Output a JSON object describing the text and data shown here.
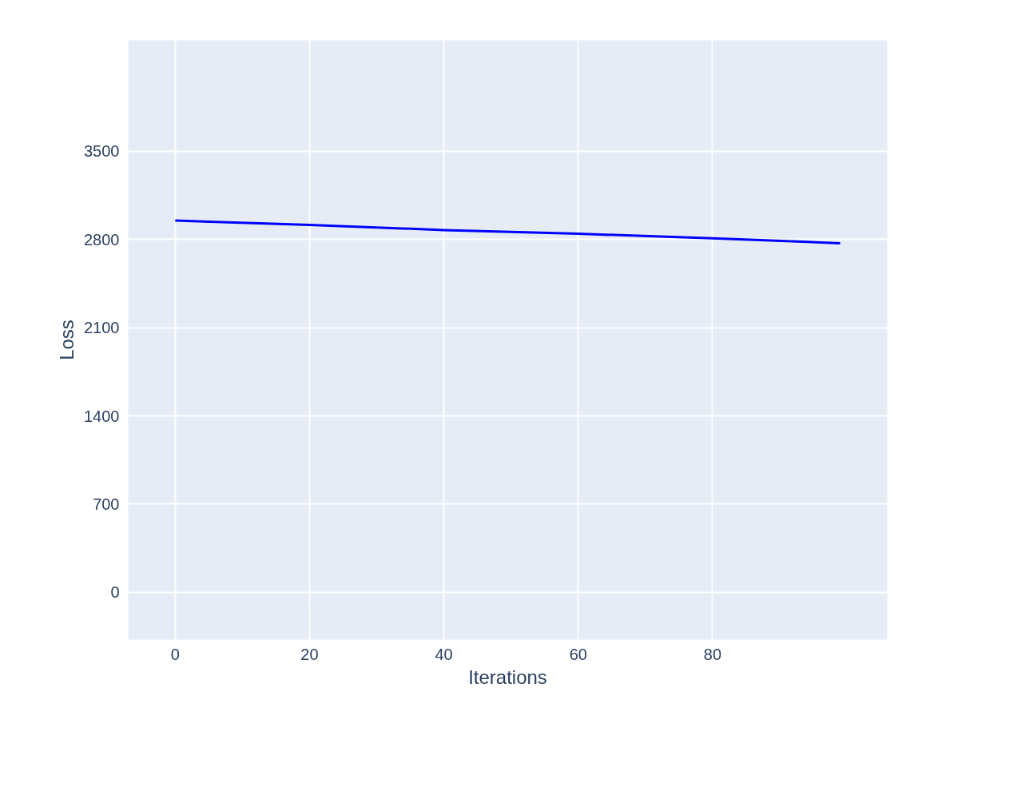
{
  "chart_data": {
    "type": "line",
    "xlabel": "Iterations",
    "ylabel": "Loss",
    "x": [
      0,
      20,
      40,
      60,
      80,
      99
    ],
    "series": [
      {
        "color": "#0000ff",
        "values": [
          2950,
          2915,
          2875,
          2845,
          2810,
          2770
        ]
      }
    ],
    "xlim": [
      -7,
      106
    ],
    "ylim": [
      -375,
      4380
    ],
    "xticks": [
      0,
      20,
      40,
      60,
      80
    ],
    "yticks": [
      0,
      700,
      1400,
      2100,
      2800,
      3500
    ],
    "grid": true,
    "line_style": "solid",
    "marker": "none"
  }
}
